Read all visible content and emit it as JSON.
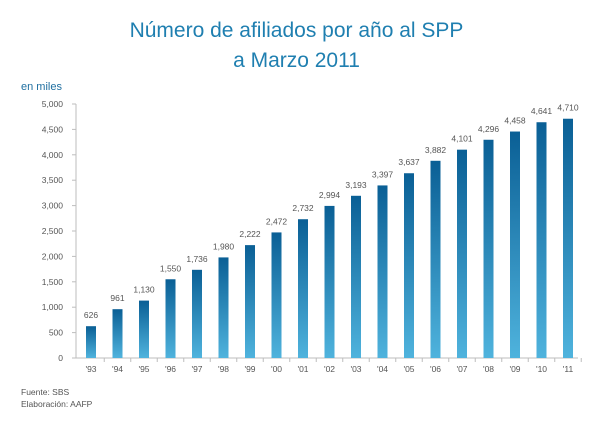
{
  "chart_data": {
    "type": "bar",
    "title_line1": "Número de afiliados por año al SPP",
    "title_line2": "a Marzo 2011",
    "unit_label": "en miles",
    "categories": [
      "'93",
      "'94",
      "'95",
      "'96",
      "'97",
      "'98",
      "'99",
      "'00",
      "'01",
      "'02",
      "'03",
      "'04",
      "'05",
      "'06",
      "'07",
      "'08",
      "'09",
      "'10",
      "'11"
    ],
    "values": [
      626,
      961,
      1130,
      1550,
      1736,
      1980,
      2222,
      2472,
      2732,
      2994,
      3193,
      3397,
      3637,
      3882,
      4101,
      4296,
      4458,
      4641,
      4710
    ],
    "value_labels": [
      "626",
      "961",
      "1,130",
      "1,550",
      "1,736",
      "1,980",
      "2,222",
      "2,472",
      "2,732",
      "2,994",
      "3,193",
      "3,397",
      "3,637",
      "3,882",
      "4,101",
      "4,296",
      "4,458",
      "4,641",
      "4,710"
    ],
    "y_ticks": [
      0,
      500,
      1000,
      1500,
      2000,
      2500,
      3000,
      3500,
      4000,
      4500,
      5000
    ],
    "y_tick_labels": [
      "0",
      "500",
      "1,000",
      "1,500",
      "2,000",
      "2,500",
      "3,000",
      "3,500",
      "4,000",
      "4,500",
      "5,000"
    ],
    "ylim": [
      0,
      5000
    ],
    "grid": false,
    "legend": "none",
    "colors": {
      "bar_top": "#0a5f95",
      "bar_bottom": "#4fb3dd",
      "title": "#1f7fb0"
    }
  },
  "footer": {
    "source": "Fuente: SBS",
    "credit": "Elaboración: AAFP"
  }
}
